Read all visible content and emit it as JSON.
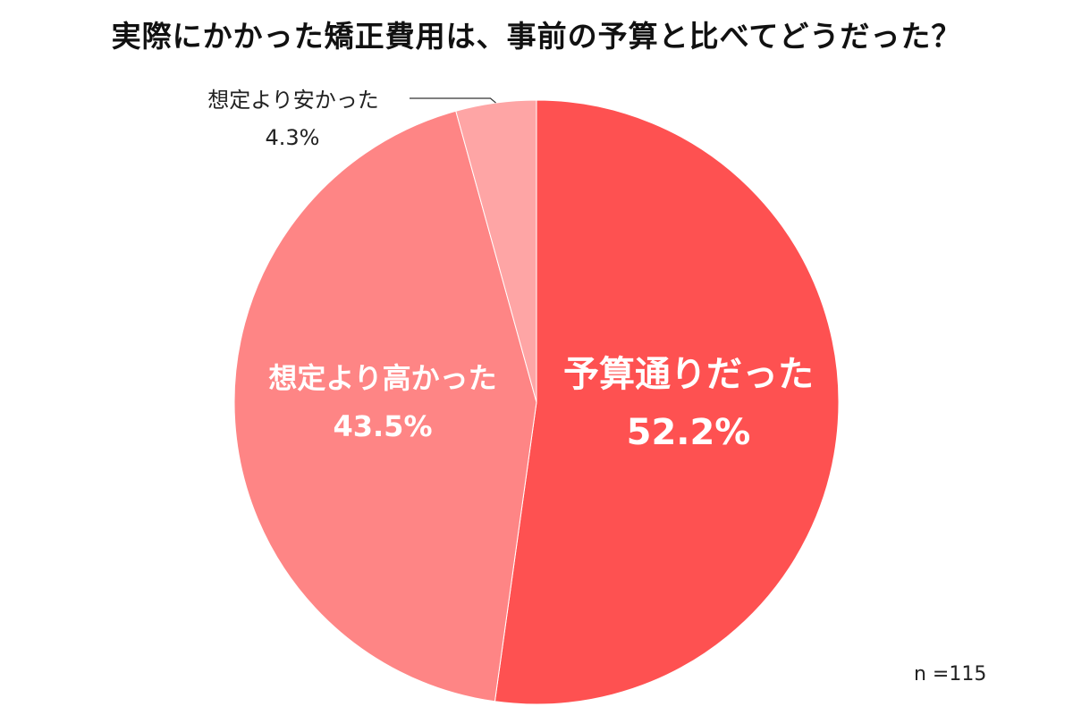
{
  "chart_data": {
    "type": "pie",
    "title": "実際にかかった矯正費用は、事前の予算と比べてどうだった？",
    "slices": [
      {
        "label": "予算通りだった",
        "value": 52.2,
        "value_label": "52.2%",
        "color": "#fe5151",
        "label_color": "#ffffff"
      },
      {
        "label": "想定より高かった",
        "value": 43.5,
        "value_label": "43.5%",
        "color": "#fe8585",
        "label_color": "#ffffff"
      },
      {
        "label": "想定より安かった",
        "value": 4.3,
        "value_label": "4.3%",
        "color": "#fea5a5",
        "label_color": "#222222"
      }
    ],
    "start": "12 o'clock",
    "direction": "clockwise",
    "note": "n =115"
  }
}
